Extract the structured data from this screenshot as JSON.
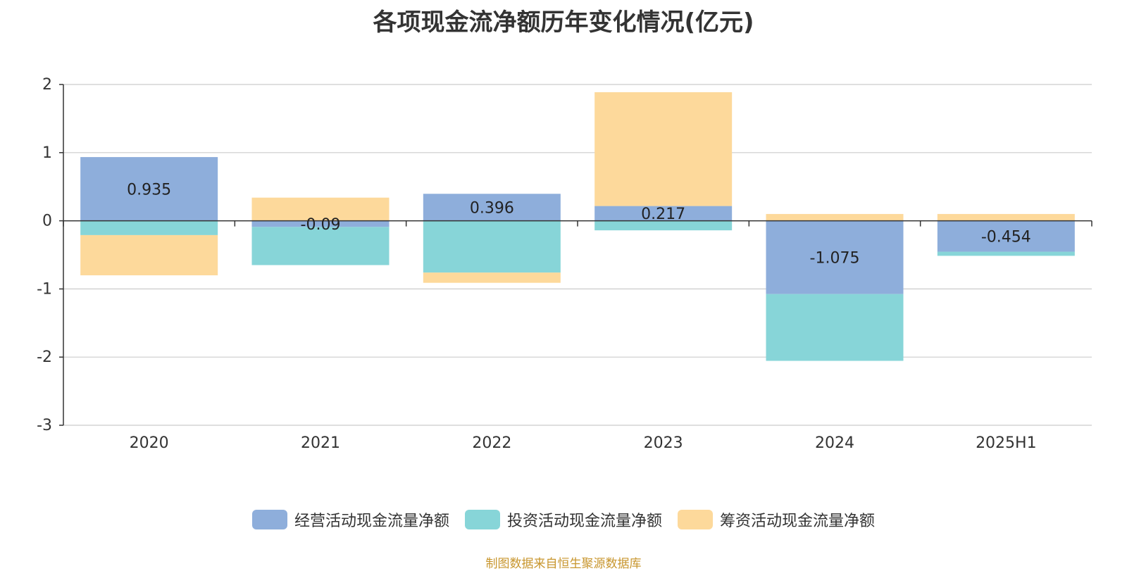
{
  "title": "各项现金流净额历年变化情况(亿元)",
  "source": "制图数据来自恒生聚源数据库",
  "chart_data": {
    "type": "bar",
    "stacked": true,
    "categories": [
      "2020",
      "2021",
      "2022",
      "2023",
      "2024",
      "2025H1"
    ],
    "ylim": [
      -3,
      2
    ],
    "yticks": [
      "2",
      "1",
      "0",
      "-1",
      "-2",
      "-3"
    ],
    "grid": true,
    "legend_position": "bottom",
    "series": [
      {
        "name": "经营活动现金流量净额",
        "color": "#8eaedb",
        "values": [
          0.935,
          -0.09,
          0.396,
          0.217,
          -1.075,
          -0.454
        ],
        "labels": [
          "0.935",
          "-0.09",
          "0.396",
          "0.217",
          "-1.075",
          "-0.454"
        ]
      },
      {
        "name": "投资活动现金流量净额",
        "color": "#87d5d8",
        "values": [
          -0.21,
          -0.56,
          -0.76,
          -0.14,
          -0.98,
          -0.06
        ]
      },
      {
        "name": "筹资活动现金流量净额",
        "color": "#fdd99b",
        "values": [
          -0.59,
          0.34,
          -0.15,
          1.67,
          0.1,
          0.1
        ]
      }
    ]
  }
}
